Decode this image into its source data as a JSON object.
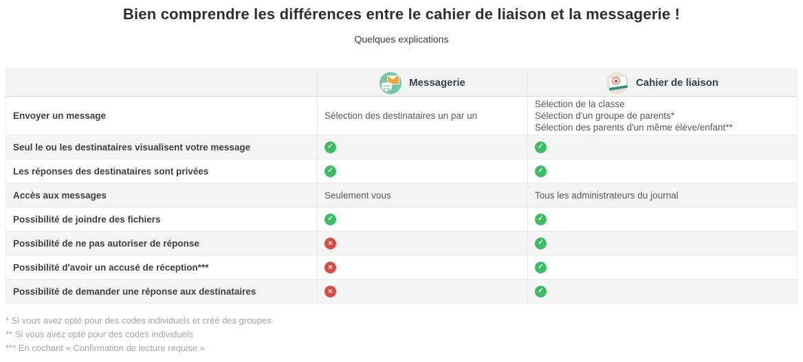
{
  "page": {
    "title": "Bien comprendre les différences entre le cahier de liaison et la messagerie !",
    "subtitle": "Quelques explications"
  },
  "table": {
    "columns": [
      {
        "key": "feature",
        "label": ""
      },
      {
        "key": "messagerie",
        "label": "Messagerie",
        "icon": "messagerie-icon"
      },
      {
        "key": "cahier",
        "label": "Cahier de liaison",
        "icon": "cahier-de-liaison-icon"
      }
    ],
    "rows": [
      {
        "label": "Envoyer un message",
        "messagerie": {
          "type": "text",
          "lines": [
            "Sélection des destinataires un par un"
          ]
        },
        "cahier": {
          "type": "text",
          "lines": [
            "Sélection de la classe",
            "Sélection d'un groupe de parents*",
            "Sélection des parents d'un même élève/enfant**"
          ]
        }
      },
      {
        "label": "Seul le ou les destinataires visualisent votre message",
        "messagerie": {
          "type": "check"
        },
        "cahier": {
          "type": "check"
        }
      },
      {
        "label": "Les réponses des destinataires sont privées",
        "messagerie": {
          "type": "check"
        },
        "cahier": {
          "type": "check"
        }
      },
      {
        "label": "Accès aux messages",
        "messagerie": {
          "type": "text",
          "lines": [
            "Seulement vous"
          ]
        },
        "cahier": {
          "type": "text",
          "lines": [
            "Tous les administrateurs du journal"
          ]
        }
      },
      {
        "label": "Possibilité de joindre des fichiers",
        "messagerie": {
          "type": "check"
        },
        "cahier": {
          "type": "check"
        }
      },
      {
        "label": "Possibilité de ne pas autoriser de réponse",
        "messagerie": {
          "type": "cross"
        },
        "cahier": {
          "type": "check"
        }
      },
      {
        "label": "Possibilité d'avoir un accusé de réception***",
        "messagerie": {
          "type": "cross"
        },
        "cahier": {
          "type": "check"
        }
      },
      {
        "label": "Possibilité de demander une réponse aux destinataires",
        "messagerie": {
          "type": "cross"
        },
        "cahier": {
          "type": "check"
        }
      }
    ]
  },
  "footnotes": [
    "* Si vous avez opté pour des codes individuels et créé des groupes",
    "** Si vous avez opté pour des codes individuels",
    "*** En cochant « Confirmation de lecture requise »"
  ],
  "icons": {
    "check_glyph": "✓",
    "cross_glyph": "✕"
  },
  "colors": {
    "check_green": "#3dbd61",
    "cross_red": "#dd4942",
    "header_bg": "#f3f3f4",
    "stripe_bg": "#f5f5f6",
    "messagerie_icon_bg": "#74c7a4",
    "envelope_orange": "#f2a43c",
    "cahier_icon_bg": "#ece4d6",
    "cahier_band_teal": "#3a8b80",
    "stamp_red": "#d94f43"
  }
}
